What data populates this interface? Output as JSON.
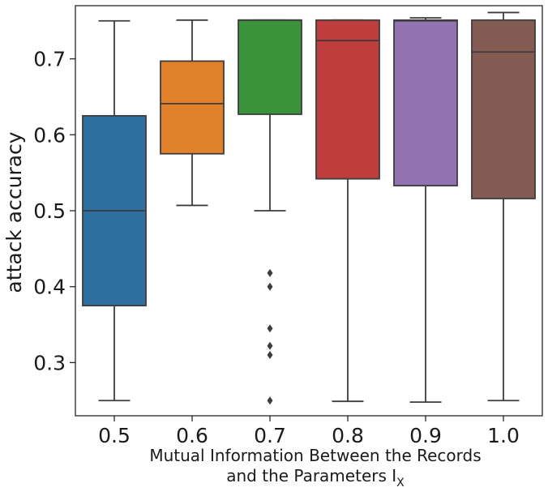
{
  "chart_data": {
    "type": "box",
    "xlabel_line1": "Mutual Information Between the Records",
    "xlabel_line2": "and the Parameters I",
    "xlabel_subscript": "X",
    "ylabel": "attack accuracy",
    "ylim": [
      0.23,
      0.77
    ],
    "yticks": [
      "0.3",
      "0.4",
      "0.5",
      "0.6",
      "0.7"
    ],
    "categories": [
      "0.5",
      "0.6",
      "0.7",
      "0.8",
      "0.9",
      "1.0"
    ],
    "grid": false,
    "legend": "none",
    "boxes": [
      {
        "category": "0.5",
        "color": "#2f6f9f",
        "whisker_low": 0.25,
        "q1": 0.375,
        "median": 0.5,
        "q3": 0.625,
        "whisker_high": 0.75,
        "outliers": []
      },
      {
        "category": "0.6",
        "color": "#e1812c",
        "whisker_low": 0.507,
        "q1": 0.575,
        "median": 0.641,
        "q3": 0.697,
        "whisker_high": 0.751,
        "outliers": []
      },
      {
        "category": "0.7",
        "color": "#3a923a",
        "whisker_low": 0.5,
        "q1": 0.627,
        "median": 0.751,
        "q3": 0.751,
        "whisker_high": 0.751,
        "outliers": [
          0.418,
          0.4,
          0.345,
          0.322,
          0.31,
          0.25
        ]
      },
      {
        "category": "0.8",
        "color": "#c03d3e",
        "whisker_low": 0.249,
        "q1": 0.542,
        "median": 0.724,
        "q3": 0.751,
        "whisker_high": 0.751,
        "outliers": []
      },
      {
        "category": "0.9",
        "color": "#9372b2",
        "whisker_low": 0.248,
        "q1": 0.533,
        "median": 0.75,
        "q3": 0.751,
        "whisker_high": 0.754,
        "outliers": []
      },
      {
        "category": "1.0",
        "color": "#845b53",
        "whisker_low": 0.25,
        "q1": 0.516,
        "median": 0.709,
        "q3": 0.751,
        "whisker_high": 0.761,
        "outliers": []
      }
    ]
  }
}
